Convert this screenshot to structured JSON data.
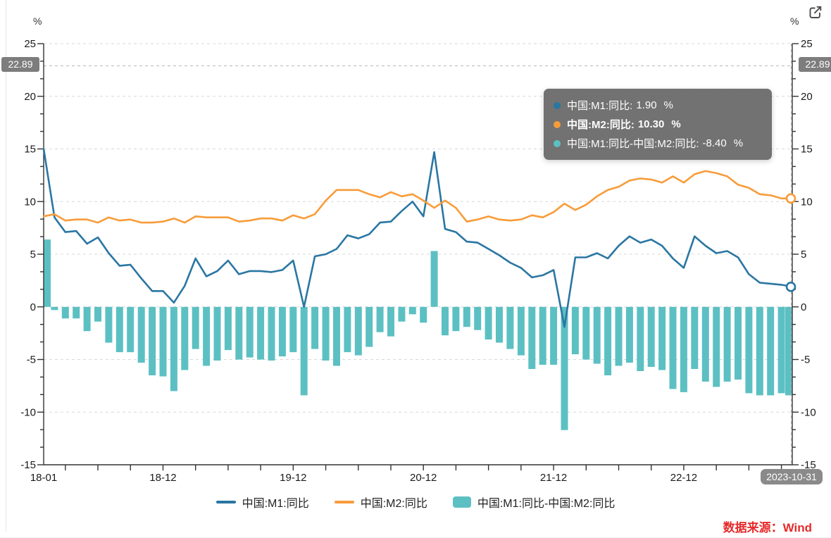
{
  "header": {
    "unit_left": "%",
    "unit_right": "%"
  },
  "toolbar": {
    "export_icon": "open-in-new-icon"
  },
  "crosshair": {
    "y_value": "22.89",
    "date": "2023-10-31"
  },
  "tooltip": {
    "rows": [
      {
        "label": "中国:M1:同比:",
        "value": "1.90",
        "unit": "%",
        "color": "#2a76a3"
      },
      {
        "label": "中国:M2:同比:",
        "value": "10.30",
        "unit": "%",
        "color": "#f89c3a"
      },
      {
        "label": "中国:M1:同比-中国:M2:同比:",
        "value": "-8.40",
        "unit": "%",
        "color": "#5cc0c3"
      }
    ]
  },
  "legend": [
    {
      "label": "中国:M1:同比",
      "type": "line",
      "color": "#2a76a3"
    },
    {
      "label": "中国:M2:同比",
      "type": "line",
      "color": "#f89c3a"
    },
    {
      "label": "中国:M1:同比-中国:M2:同比",
      "type": "bar",
      "color": "#5cc0c3"
    }
  ],
  "source": "数据来源：Wind",
  "chart_data": {
    "type": "mixed",
    "y_unit": "%",
    "ylim": [
      -15,
      25
    ],
    "y_ticks": [
      -15,
      -10,
      -5,
      0,
      5,
      10,
      15,
      20,
      25
    ],
    "grid": "dashed-horizontal",
    "x_labels_visible": [
      "18-01",
      "18-12",
      "19-12",
      "20-12",
      "21-12",
      "22-12"
    ],
    "x_label_indices": [
      0,
      11,
      23,
      35,
      47,
      59
    ],
    "months": [
      "2018-01",
      "2018-02",
      "2018-03",
      "2018-04",
      "2018-05",
      "2018-06",
      "2018-07",
      "2018-08",
      "2018-09",
      "2018-10",
      "2018-11",
      "2018-12",
      "2019-01",
      "2019-02",
      "2019-03",
      "2019-04",
      "2019-05",
      "2019-06",
      "2019-07",
      "2019-08",
      "2019-09",
      "2019-10",
      "2019-11",
      "2019-12",
      "2020-01",
      "2020-02",
      "2020-03",
      "2020-04",
      "2020-05",
      "2020-06",
      "2020-07",
      "2020-08",
      "2020-09",
      "2020-10",
      "2020-11",
      "2020-12",
      "2021-01",
      "2021-02",
      "2021-03",
      "2021-04",
      "2021-05",
      "2021-06",
      "2021-07",
      "2021-08",
      "2021-09",
      "2021-10",
      "2021-11",
      "2021-12",
      "2022-01",
      "2022-02",
      "2022-03",
      "2022-04",
      "2022-05",
      "2022-06",
      "2022-07",
      "2022-08",
      "2022-09",
      "2022-10",
      "2022-11",
      "2022-12",
      "2023-01",
      "2023-02",
      "2023-03",
      "2023-04",
      "2023-05",
      "2023-06",
      "2023-07",
      "2023-08",
      "2023-09",
      "2023-10"
    ],
    "series": [
      {
        "name": "中国:M1:同比",
        "type": "line",
        "color": "#2a76a3",
        "values": [
          15.0,
          8.5,
          7.1,
          7.2,
          6.0,
          6.6,
          5.1,
          3.9,
          4.0,
          2.7,
          1.5,
          1.5,
          0.4,
          2.0,
          4.6,
          2.9,
          3.4,
          4.4,
          3.1,
          3.4,
          3.4,
          3.3,
          3.5,
          4.4,
          0.0,
          4.8,
          5.0,
          5.5,
          6.8,
          6.5,
          6.9,
          8.0,
          8.1,
          9.1,
          10.0,
          8.6,
          14.7,
          7.4,
          7.1,
          6.2,
          6.1,
          5.5,
          4.9,
          4.2,
          3.7,
          2.8,
          3.0,
          3.5,
          -1.9,
          4.7,
          4.7,
          5.1,
          4.6,
          5.8,
          6.7,
          6.1,
          6.4,
          5.8,
          4.6,
          3.7,
          6.7,
          5.8,
          5.1,
          5.3,
          4.7,
          3.1,
          2.3,
          2.2,
          2.1,
          1.9
        ]
      },
      {
        "name": "中国:M2:同比",
        "type": "line",
        "color": "#f89c3a",
        "values": [
          8.6,
          8.8,
          8.2,
          8.3,
          8.3,
          8.0,
          8.5,
          8.2,
          8.3,
          8.0,
          8.0,
          8.1,
          8.4,
          8.0,
          8.6,
          8.5,
          8.5,
          8.5,
          8.1,
          8.2,
          8.4,
          8.4,
          8.2,
          8.7,
          8.4,
          8.8,
          10.1,
          11.1,
          11.1,
          11.1,
          10.7,
          10.4,
          10.9,
          10.5,
          10.7,
          10.1,
          9.4,
          10.1,
          9.4,
          8.1,
          8.3,
          8.6,
          8.3,
          8.2,
          8.3,
          8.7,
          8.5,
          9.0,
          9.8,
          9.2,
          9.7,
          10.5,
          11.1,
          11.4,
          12.0,
          12.2,
          12.1,
          11.8,
          12.4,
          11.8,
          12.6,
          12.9,
          12.7,
          12.4,
          11.6,
          11.3,
          10.7,
          10.6,
          10.3,
          10.3
        ]
      },
      {
        "name": "中国:M1:同比-中国:M2:同比",
        "type": "bar",
        "color": "#5cc0c3",
        "values": [
          6.4,
          -0.3,
          -1.1,
          -1.1,
          -2.3,
          -1.4,
          -3.4,
          -4.3,
          -4.3,
          -5.3,
          -6.5,
          -6.6,
          -8.0,
          -6.0,
          -4.0,
          -5.6,
          -5.1,
          -4.1,
          -5.0,
          -4.8,
          -5.0,
          -5.1,
          -4.7,
          -4.3,
          -8.4,
          -4.0,
          -5.1,
          -5.6,
          -4.3,
          -4.6,
          -3.8,
          -2.4,
          -2.8,
          -1.4,
          -0.7,
          -1.5,
          5.3,
          -2.7,
          -2.3,
          -1.9,
          -2.2,
          -3.1,
          -3.4,
          -4.0,
          -4.6,
          -5.9,
          -5.5,
          -5.5,
          -11.7,
          -4.5,
          -5.0,
          -5.4,
          -6.5,
          -5.6,
          -5.3,
          -6.1,
          -5.7,
          -6.0,
          -7.8,
          -8.1,
          -5.9,
          -7.1,
          -7.6,
          -7.1,
          -6.9,
          -8.2,
          -8.4,
          -8.4,
          -8.2,
          -8.4
        ]
      }
    ]
  }
}
